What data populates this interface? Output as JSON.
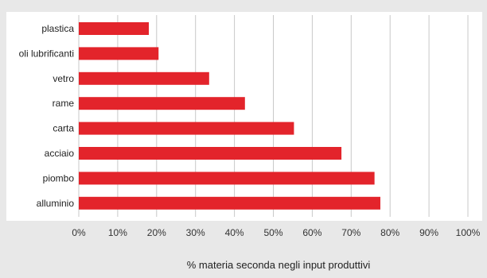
{
  "chart_data": {
    "type": "bar",
    "orientation": "horizontal",
    "categories": [
      "plastica",
      "oli lubrificanti",
      "vetro",
      "rame",
      "carta",
      "acciaio",
      "piombo",
      "alluminio"
    ],
    "values": [
      18.0,
      20.5,
      33.5,
      42.7,
      55.3,
      67.5,
      76.0,
      77.5
    ],
    "title": "",
    "xlabel": "% materia seconda negli input produttivi",
    "ylabel": "",
    "xlim": [
      0,
      100
    ],
    "xticks": [
      0,
      10,
      20,
      30,
      40,
      50,
      60,
      70,
      80,
      90,
      100
    ],
    "xtick_labels": [
      "0%",
      "10%",
      "20%",
      "30%",
      "40%",
      "50%",
      "60%",
      "70%",
      "80%",
      "90%",
      "100%"
    ],
    "grid": "vertical",
    "legend": "none",
    "colors": {
      "bar": "#e3242b",
      "background": "#e8e8e8",
      "plot_background": "#ffffff",
      "grid": "#c8c8c8"
    }
  }
}
